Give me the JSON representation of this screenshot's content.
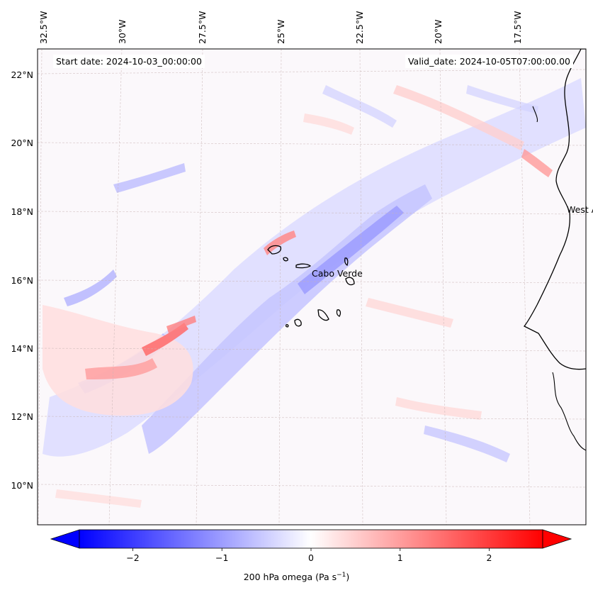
{
  "map": {
    "top_axis_labels": [
      "32.5°W",
      "30°W",
      "27.5°W",
      "25°W",
      "22.5°W",
      "20°W",
      "17.5°W"
    ],
    "left_axis_labels": [
      "22°N",
      "20°N",
      "18°N",
      "16°N",
      "14°N",
      "12°N",
      "10°N"
    ],
    "start_date_label": "Start date: 2024-10-03_00:00:00",
    "valid_date_label": "Valid_date: 2024-10-05T07:00:00.00",
    "land_labels": [
      "Cabo Verde",
      "West Africa"
    ]
  },
  "colorbar": {
    "tick_values": [
      -2,
      -1,
      0,
      1,
      2
    ],
    "tick_labels": [
      "−2",
      "−1",
      "0",
      "1",
      "2"
    ],
    "range": [
      -2.6,
      2.6
    ],
    "extend": "both",
    "cmap": "bwr",
    "label_main": "200 hPa omega (Pa s",
    "label_exp": "−1",
    "label_end": ")"
  },
  "colors": {
    "negative": "#0000ff",
    "zero": "#ffffff",
    "positive": "#ff0000",
    "coastline": "#000000",
    "grid": "#c8b4b4"
  }
}
